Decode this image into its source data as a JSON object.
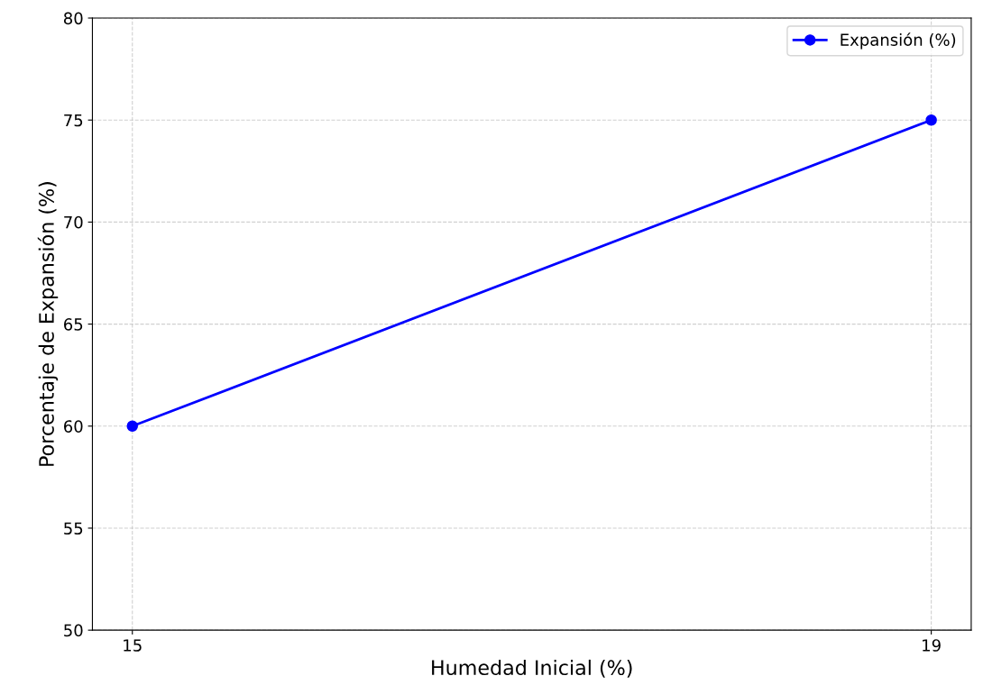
{
  "chart_data": {
    "type": "line",
    "xlabel": "Humedad Inicial (%)",
    "ylabel": "Porcentaje de Expansión (%)",
    "x": [
      15,
      19
    ],
    "series": [
      {
        "name": "Expansión (%)",
        "color": "#0000ff",
        "values": [
          60,
          75
        ]
      }
    ],
    "xlim": [
      14.8,
      19.2
    ],
    "xticks": [
      15,
      19
    ],
    "ylim": [
      50,
      80
    ],
    "yticks": [
      50,
      55,
      60,
      65,
      70,
      75,
      80
    ],
    "grid": true,
    "legend": "top right",
    "marker": "circle",
    "line_style": "solid"
  }
}
